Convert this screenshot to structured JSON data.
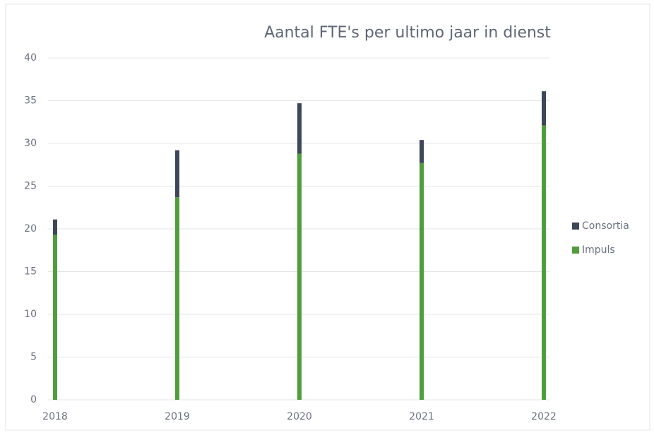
{
  "chart_data": {
    "type": "stacked_bar",
    "title": "Aantal FTE's per ultimo jaar in dienst",
    "categories": [
      "2018",
      "2019",
      "2020",
      "2021",
      "2022"
    ],
    "series": [
      {
        "name": "Impuls",
        "color": "#4f9e3b",
        "values": [
          19.3,
          23.7,
          28.8,
          27.7,
          32.1
        ]
      },
      {
        "name": "Consortia",
        "color": "#3e4759",
        "values": [
          1.8,
          5.5,
          5.9,
          2.7,
          4.0
        ]
      }
    ],
    "ylim": [
      0,
      40
    ],
    "yticks": [
      0,
      5,
      10,
      15,
      20,
      25,
      30,
      35,
      40
    ],
    "grid": true,
    "legend": "right"
  }
}
